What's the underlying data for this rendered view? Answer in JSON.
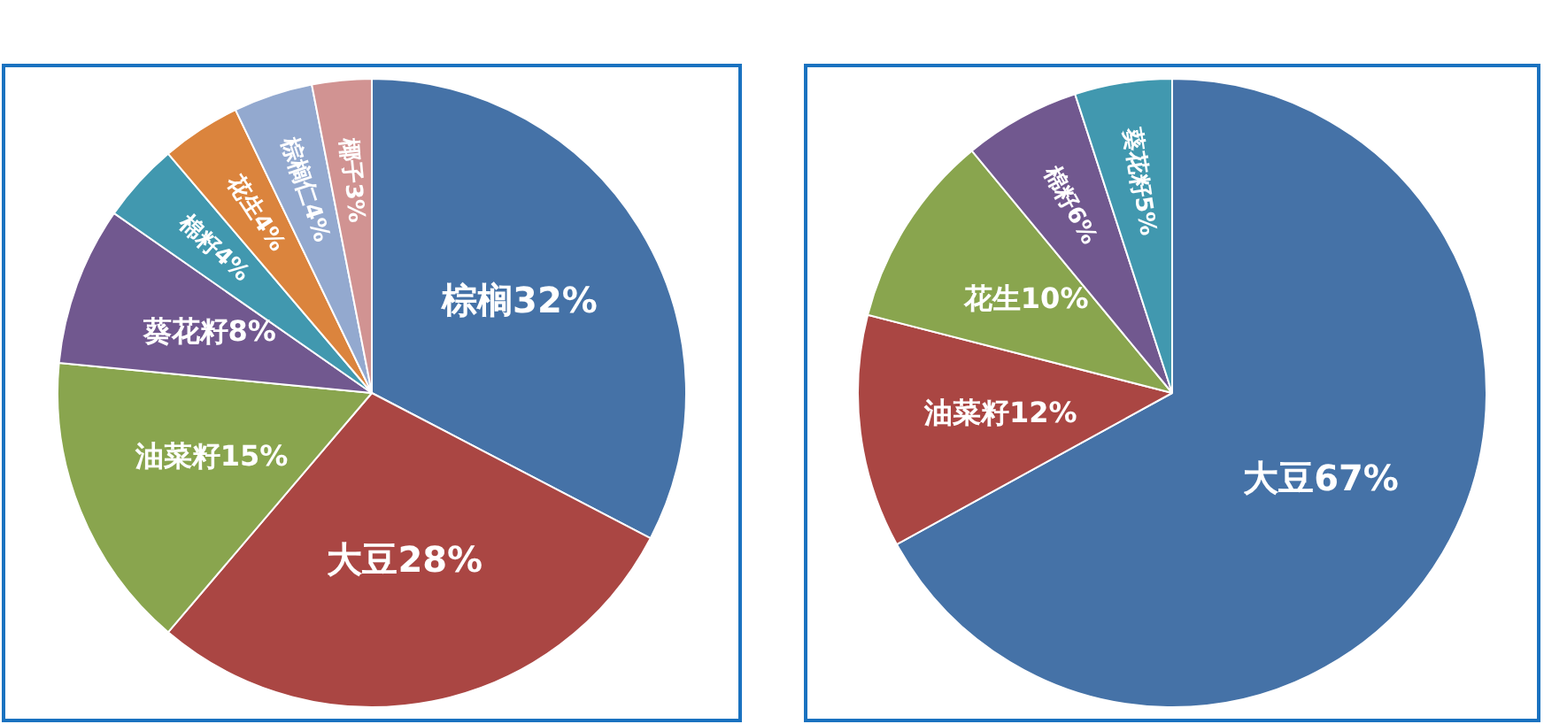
{
  "chart_data": [
    {
      "type": "pie",
      "categories": [
        "棕榈",
        "大豆",
        "油菜籽",
        "葵花籽",
        "棉籽",
        "花生",
        "棕榈仁",
        "椰子"
      ],
      "values": [
        32,
        28,
        15,
        8,
        4,
        4,
        4,
        3
      ],
      "value_labels": [
        "32%",
        "28%",
        "15%",
        "8%",
        "4%",
        "4%",
        "4%",
        "3%"
      ],
      "colors": [
        "#4572a7",
        "#aa4643",
        "#89a54e",
        "#71588f",
        "#4198af",
        "#db843d",
        "#93a9cf",
        "#d19392"
      ],
      "legend": false
    },
    {
      "type": "pie",
      "categories": [
        "大豆",
        "油菜籽",
        "花生",
        "棉籽",
        "葵花籽"
      ],
      "values": [
        67,
        12,
        10,
        6,
        5
      ],
      "value_labels": [
        "67%",
        "12%",
        "10%",
        "6%",
        "5%"
      ],
      "colors": [
        "#4572a7",
        "#aa4643",
        "#89a54e",
        "#71588f",
        "#4198af"
      ],
      "legend": false
    }
  ]
}
